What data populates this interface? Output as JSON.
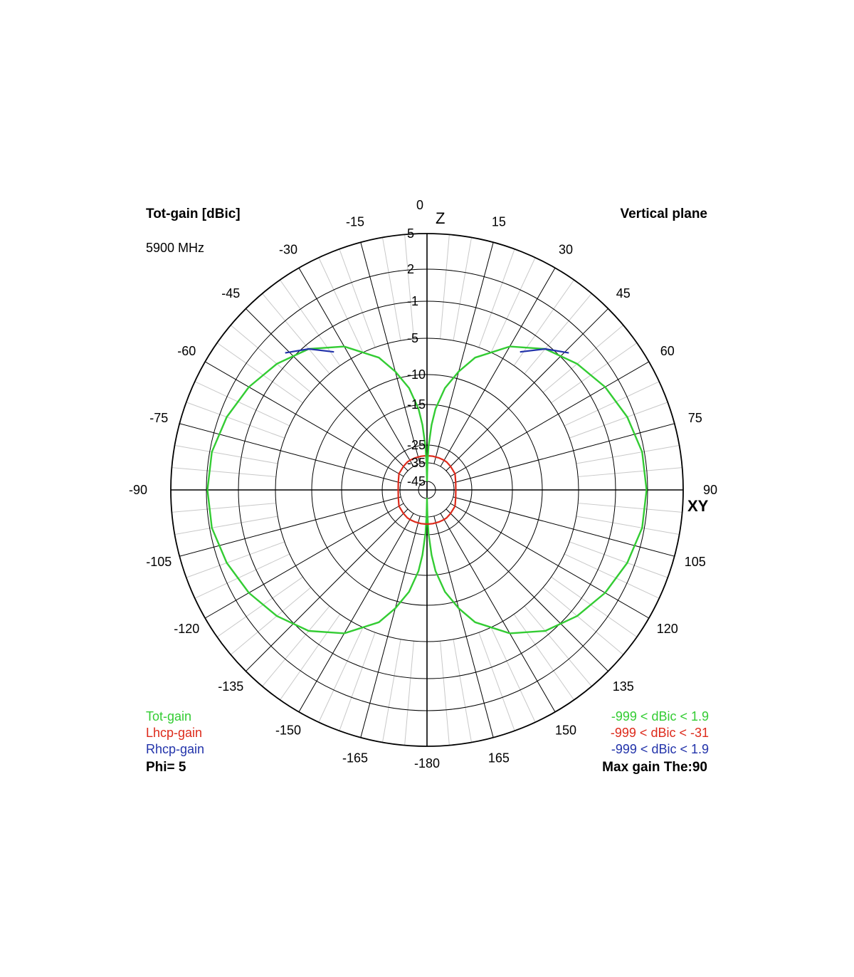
{
  "header": {
    "quantity": "Tot-gain [dBic]",
    "frequency": "5900 MHz",
    "plane": "Vertical plane"
  },
  "axis_labels": {
    "top": "Z",
    "right": "XY"
  },
  "legend": {
    "items": [
      {
        "label": "Tot-gain",
        "color": "#33cc33",
        "range": "-999 < dBic < 1.9"
      },
      {
        "label": "Lhcp-gain",
        "color": "#dd2a1b",
        "range": "-999 < dBic < -31"
      },
      {
        "label": "Rhcp-gain",
        "color": "#2233aa",
        "range": "-999 < dBic < 1.9"
      }
    ],
    "phi": "Phi= 5",
    "max_gain": "Max gain The:90"
  },
  "chart_data": {
    "type": "polar",
    "angle_unit": "deg",
    "angle_zero": "top",
    "angle_direction": "clockwise",
    "angle_ticks": [
      0,
      15,
      30,
      45,
      60,
      75,
      90,
      105,
      120,
      135,
      150,
      165,
      -180,
      -165,
      -150,
      -135,
      -120,
      -105,
      -90,
      -75,
      -60,
      -45,
      -30,
      -15
    ],
    "radial_ticks": [
      5,
      2,
      -1,
      -5,
      -10,
      -15,
      -25,
      -35,
      -45
    ],
    "radial_range_db": [
      -45,
      5
    ],
    "series": [
      {
        "name": "Tot-gain",
        "color": "#33cc33",
        "points": [
          [
            0,
            -45
          ],
          [
            1,
            -36
          ],
          [
            2,
            -26
          ],
          [
            4,
            -20
          ],
          [
            6,
            -16
          ],
          [
            10,
            -12
          ],
          [
            15,
            -9
          ],
          [
            20,
            -6.5
          ],
          [
            30,
            -3.5
          ],
          [
            40,
            -1.5
          ],
          [
            50,
            -0.3
          ],
          [
            60,
            0.6
          ],
          [
            70,
            1.3
          ],
          [
            80,
            1.8
          ],
          [
            90,
            1.9
          ],
          [
            100,
            1.8
          ],
          [
            110,
            1.3
          ],
          [
            120,
            0.6
          ],
          [
            130,
            -0.3
          ],
          [
            140,
            -1.5
          ],
          [
            150,
            -3.5
          ],
          [
            160,
            -6.5
          ],
          [
            165,
            -9
          ],
          [
            170,
            -12
          ],
          [
            174,
            -16
          ],
          [
            176,
            -20
          ],
          [
            178,
            -26
          ],
          [
            179,
            -36
          ],
          [
            180,
            -45
          ],
          [
            -179,
            -36
          ],
          [
            -178,
            -26
          ],
          [
            -176,
            -20
          ],
          [
            -174,
            -16
          ],
          [
            -170,
            -12
          ],
          [
            -165,
            -9
          ],
          [
            -160,
            -6.5
          ],
          [
            -150,
            -3.5
          ],
          [
            -140,
            -1.5
          ],
          [
            -130,
            -0.3
          ],
          [
            -120,
            0.6
          ],
          [
            -110,
            1.3
          ],
          [
            -100,
            1.8
          ],
          [
            -90,
            1.9
          ],
          [
            -80,
            1.8
          ],
          [
            -70,
            1.3
          ],
          [
            -60,
            0.6
          ],
          [
            -50,
            -0.3
          ],
          [
            -40,
            -1.5
          ],
          [
            -30,
            -3.5
          ],
          [
            -20,
            -6.5
          ],
          [
            -15,
            -9
          ],
          [
            -10,
            -12
          ],
          [
            -6,
            -16
          ],
          [
            -4,
            -20
          ],
          [
            -2,
            -26
          ],
          [
            -1,
            -36
          ],
          [
            0,
            -45
          ]
        ]
      },
      {
        "name": "Lhcp-gain",
        "color": "#dd2a1b",
        "points": [
          [
            3,
            -31
          ],
          [
            10,
            -31
          ],
          [
            20,
            -31
          ],
          [
            28,
            -31
          ],
          [
            35,
            -31
          ],
          [
            45,
            -31.5
          ],
          [
            60,
            -32
          ],
          [
            75,
            -33.5
          ],
          [
            90,
            -34
          ],
          [
            105,
            -33.5
          ],
          [
            120,
            -32
          ],
          [
            135,
            -31.5
          ],
          [
            145,
            -31
          ],
          [
            152,
            -31
          ],
          [
            160,
            -31
          ],
          [
            170,
            -31
          ],
          [
            177,
            -31
          ],
          [
            -177,
            -31
          ],
          [
            -170,
            -31
          ],
          [
            -160,
            -31
          ],
          [
            -152,
            -31
          ],
          [
            -145,
            -31
          ],
          [
            -135,
            -31.5
          ],
          [
            -120,
            -32
          ],
          [
            -105,
            -33.5
          ],
          [
            -90,
            -34
          ],
          [
            -75,
            -33.5
          ],
          [
            -60,
            -32
          ],
          [
            -45,
            -31.5
          ],
          [
            -35,
            -31
          ],
          [
            -28,
            -31
          ],
          [
            -20,
            -31
          ],
          [
            -10,
            -31
          ],
          [
            -3,
            -31
          ]
        ]
      },
      {
        "name": "Rhcp-gain",
        "color": "#2233aa",
        "points": [
          [
            34,
            -3.4
          ],
          [
            40,
            -1.5
          ],
          [
            46,
            -0.2
          ]
        ]
      },
      {
        "name": "Rhcp-gain",
        "color": "#2233aa",
        "points": [
          [
            -34,
            -3.4
          ],
          [
            -40,
            -1.5
          ],
          [
            -46,
            -0.2
          ]
        ]
      }
    ]
  }
}
